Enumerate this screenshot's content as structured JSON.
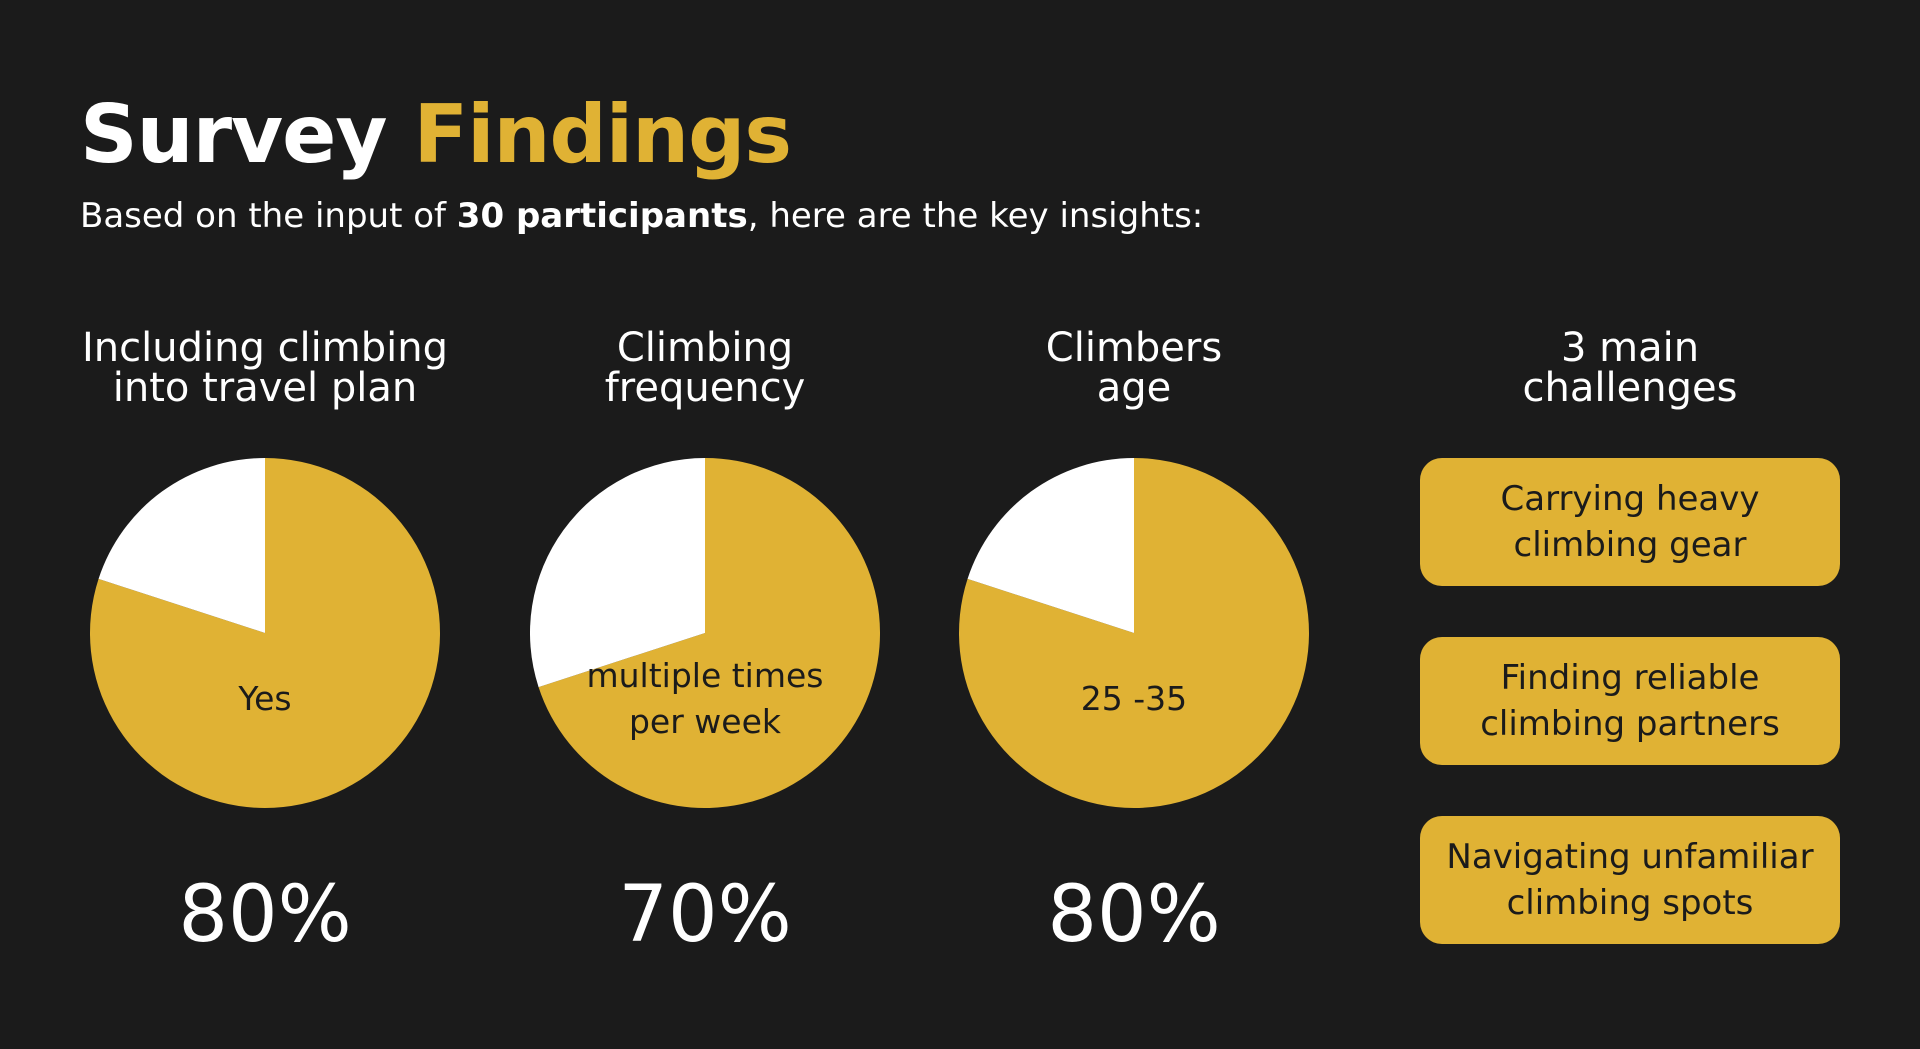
{
  "title": {
    "word1": "Survey",
    "word2": "Findings"
  },
  "subtitle": {
    "prefix": "Based on the input of ",
    "bold": "30 participants",
    "suffix": ", here are the key insights:"
  },
  "colors": {
    "background": "#1b1b1b",
    "accent": "#e0b234",
    "text": "#ffffff",
    "dark_text": "#1b1b1b"
  },
  "chart_data": [
    {
      "type": "pie",
      "title": [
        "Including climbing",
        "into travel plan"
      ],
      "slices": [
        {
          "label": "Yes",
          "value": 80,
          "color": "#e0b234"
        },
        {
          "label": "",
          "value": 20,
          "color": "#ffffff"
        }
      ],
      "value_label": "80%"
    },
    {
      "type": "pie",
      "title": [
        "Climbing",
        "frequency"
      ],
      "slices": [
        {
          "label": "multiple times per week",
          "value": 70,
          "color": "#e0b234"
        },
        {
          "label": "",
          "value": 30,
          "color": "#ffffff"
        }
      ],
      "value_label": "70%"
    },
    {
      "type": "pie",
      "title": [
        "Climbers",
        "age"
      ],
      "slices": [
        {
          "label": "25 -35",
          "value": 80,
          "color": "#e0b234"
        },
        {
          "label": "",
          "value": 20,
          "color": "#ffffff"
        }
      ],
      "value_label": "80%"
    }
  ],
  "pie_labels": [
    [
      "Yes"
    ],
    [
      "multiple times",
      "per week"
    ],
    [
      "25 -35"
    ]
  ],
  "challenges": {
    "title": [
      "3 main",
      "challenges"
    ],
    "items": [
      [
        "Carrying heavy",
        "climbing gear"
      ],
      [
        "Finding reliable",
        "climbing partners"
      ],
      [
        "Navigating unfamiliar",
        "climbing spots"
      ]
    ]
  }
}
